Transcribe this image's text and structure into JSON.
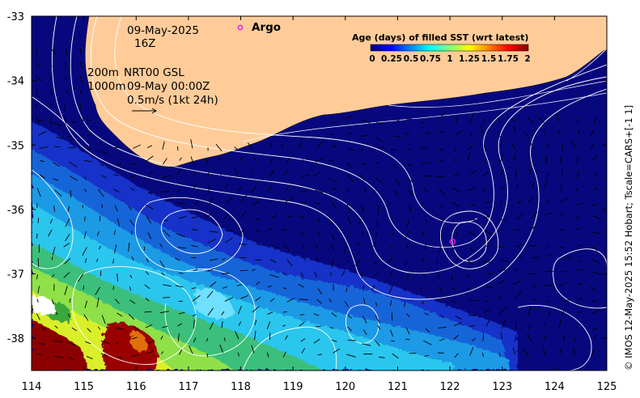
{
  "chart_data": {
    "type": "heatmap",
    "x_ticks": [
      "114",
      "115",
      "116",
      "117",
      "118",
      "119",
      "120",
      "121",
      "122",
      "123",
      "124",
      "125"
    ],
    "y_ticks": [
      "-33",
      "-34",
      "-35",
      "-36",
      "-37",
      "-38"
    ],
    "xlim": [
      114,
      125
    ],
    "ylim": [
      -38.5,
      -33
    ]
  },
  "annotations": {
    "date": "09-May-2025",
    "time": "16Z",
    "depth_200": "200m",
    "depth_1000": "1000m",
    "product": "NRT00 GSL",
    "product_time": "09-May 00:00Z",
    "scale_vector": "0.5m/s (1kt 24h)"
  },
  "argo": {
    "label": "Argo",
    "marker_color": "#e020e0",
    "float_lon": 122.05,
    "float_lat": -36.5
  },
  "colorbar": {
    "title": "Age (days) of filled SST (wrt latest)",
    "tick_labels": [
      "0",
      "0.25",
      "0.5",
      "0.75",
      "1",
      "1.25",
      "1.5",
      "1.75",
      "2"
    ],
    "colors": [
      "#00007f",
      "#0000ff",
      "#007fff",
      "#00ffff",
      "#7fff7f",
      "#ffff00",
      "#ff7f00",
      "#ff0000",
      "#7f0000"
    ]
  },
  "land_color": "#ffcc99",
  "credit": "© IMOS 12-May-2025 15:52 Hobart; Tscale=CARS+[-1 1]"
}
